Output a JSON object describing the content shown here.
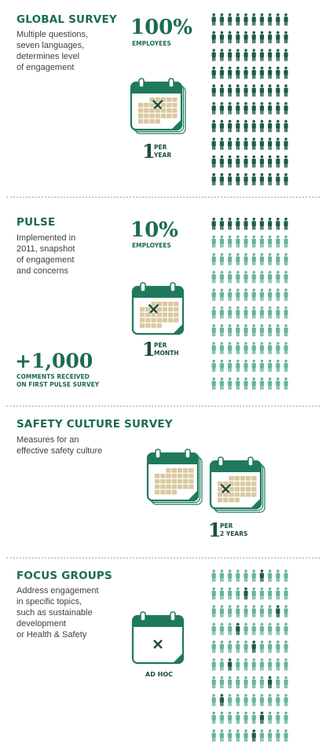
{
  "colors": {
    "dark_green": "#1d5c47",
    "light_green": "#67b59b",
    "calendar_header": "#1f7a5c",
    "calendar_cell": "#d9c99f"
  },
  "sections": [
    {
      "title": "GLOBAL SURVEY",
      "description_lines": [
        "Multiple questions,",
        "seven languages,",
        "determines level",
        "of engagement"
      ],
      "stat_value": "100%",
      "stat_label": "EMPLOYEES",
      "frequency_number": "1",
      "frequency_lines": [
        "PER",
        "YEAR"
      ],
      "people_grid": {
        "rows": 10,
        "cols": 10,
        "highlighted_fraction": 1.0
      }
    },
    {
      "title": "PULSE",
      "description_lines": [
        "Implemented in",
        "2011, snapshot",
        "of engagement",
        "and concerns"
      ],
      "stat_value": "10%",
      "stat_label": "EMPLOYEES",
      "frequency_number": "1",
      "frequency_lines": [
        "PER",
        "MONTH"
      ],
      "comments_value": "+1,000",
      "comments_lines": [
        "COMMENTS RECEIVED",
        "ON FIRST PULSE SURVEY"
      ],
      "people_grid": {
        "rows": 10,
        "cols": 10,
        "highlighted_fraction": 0.1
      }
    },
    {
      "title": "SAFETY CULTURE SURVEY",
      "description_lines": [
        "Measures for an",
        "effective safety culture"
      ],
      "frequency_number": "1",
      "frequency_lines": [
        "PER",
        "2 YEARS"
      ]
    },
    {
      "title": "FOCUS GROUPS",
      "description_lines": [
        "Address engagement",
        "in specific topics,",
        "such as sustainable",
        "development",
        "or Health & Safety"
      ],
      "frequency_label": "AD HOC",
      "people_grid": {
        "rows": 10,
        "cols": 10,
        "highlighted_fraction": 0.1
      }
    }
  ]
}
